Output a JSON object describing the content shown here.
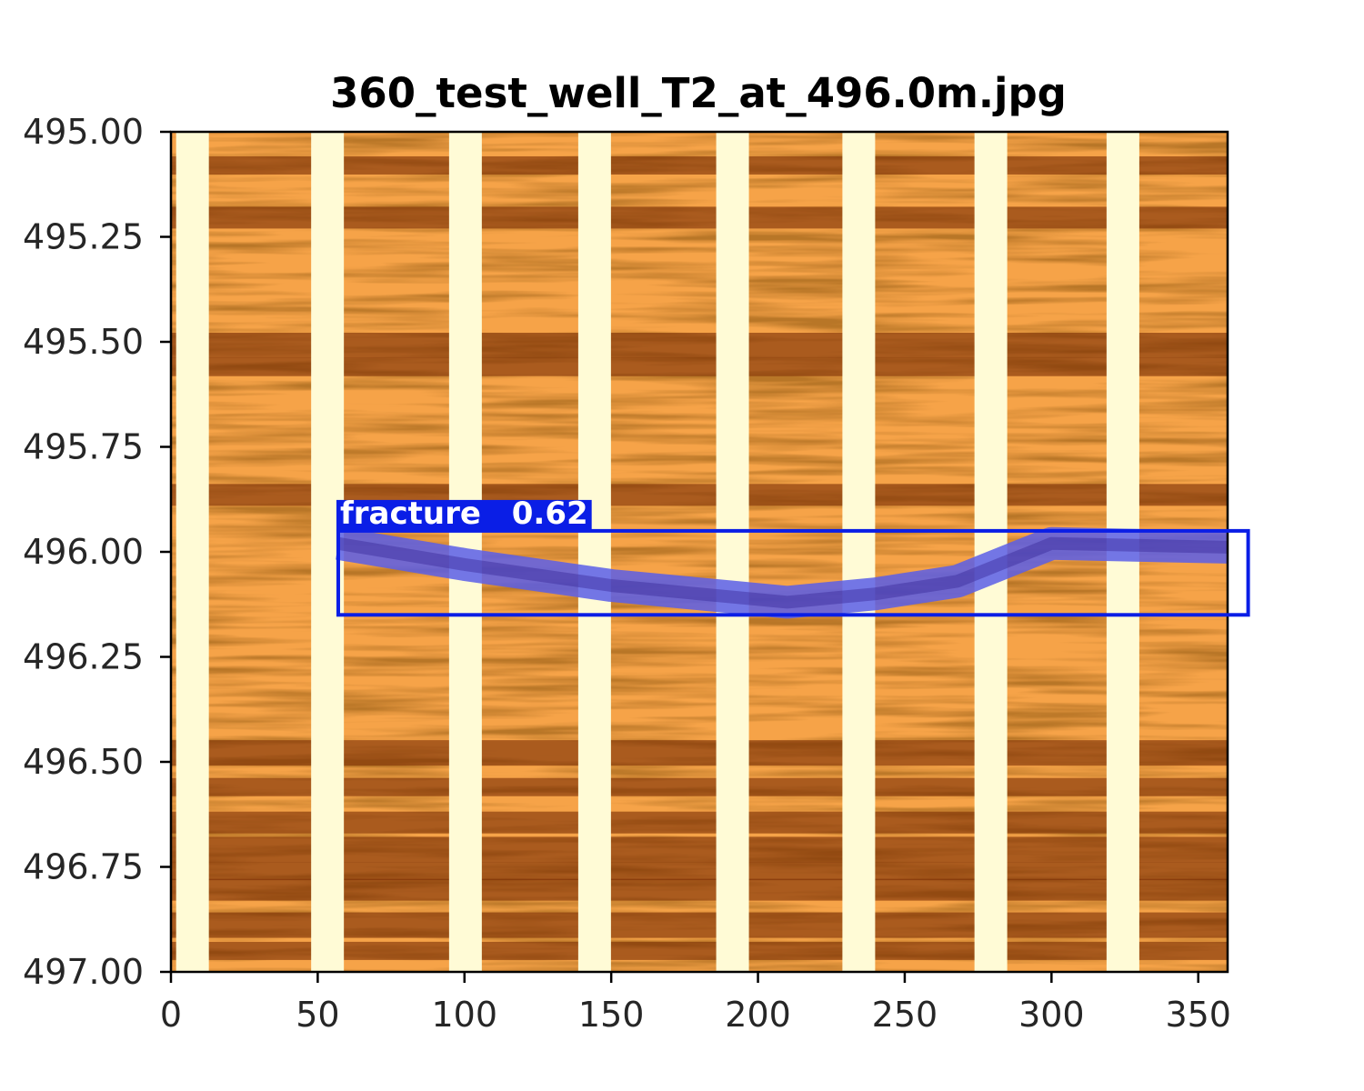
{
  "chart_data": {
    "type": "heatmap",
    "title": "360_test_well_T2_at_496.0m.jpg",
    "xlabel": "",
    "ylabel": "",
    "xlim": [
      0,
      360
    ],
    "ylim": [
      495.0,
      497.0
    ],
    "y_inverted": true,
    "x_ticks": [
      0,
      50,
      100,
      150,
      200,
      250,
      300,
      350
    ],
    "x_tick_labels": [
      "0",
      "50",
      "100",
      "150",
      "200",
      "250",
      "300",
      "350"
    ],
    "y_ticks": [
      495.0,
      495.25,
      495.5,
      495.75,
      496.0,
      496.25,
      496.5,
      496.75,
      497.0
    ],
    "y_tick_labels": [
      "495.00",
      "495.25",
      "495.50",
      "495.75",
      "496.00",
      "496.25",
      "496.50",
      "496.75",
      "497.00"
    ],
    "colormap": "YlOrBr",
    "colors": {
      "light": "#fffbd6",
      "mid": "#f6a348",
      "dark": "#7a2e05",
      "detection": "#0a1ee6",
      "mask": "#5a5ee8"
    },
    "pad_gaps_x": [
      3,
      49,
      96,
      140,
      187,
      230,
      275,
      320
    ],
    "dark_bands_depth": [
      495.08,
      495.2,
      495.5,
      495.56,
      495.86,
      496.47,
      496.56,
      496.64,
      496.7,
      496.76,
      496.8,
      496.88,
      496.95
    ],
    "detection": {
      "label": "fracture",
      "score": "0.62",
      "x_range": [
        57,
        367
      ],
      "depth_range": [
        495.95,
        496.15
      ],
      "trace": [
        {
          "x": 57,
          "depth": 495.98
        },
        {
          "x": 100,
          "depth": 496.03
        },
        {
          "x": 150,
          "depth": 496.08
        },
        {
          "x": 210,
          "depth": 496.12
        },
        {
          "x": 240,
          "depth": 496.1
        },
        {
          "x": 268,
          "depth": 496.07
        },
        {
          "x": 300,
          "depth": 495.98
        },
        {
          "x": 367,
          "depth": 495.99
        }
      ]
    }
  }
}
